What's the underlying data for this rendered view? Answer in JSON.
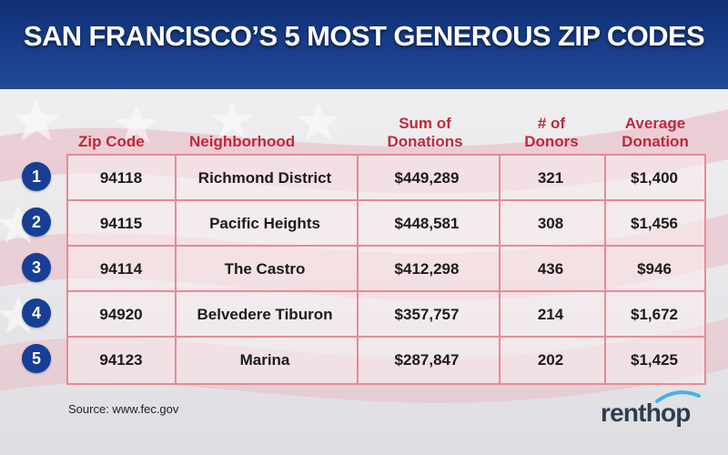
{
  "title": "SAN FRANCISCO’S 5 MOST GENEROUS ZIP CODES",
  "headers": {
    "zip": "Zip Code",
    "neighborhood": "Neighborhood",
    "sum_line1": "Sum of",
    "sum_line2": "Donations",
    "donors_line1": "# of",
    "donors_line2": "Donors",
    "avg_line1": "Average",
    "avg_line2": "Donation"
  },
  "rows": [
    {
      "rank": "1",
      "zip": "94118",
      "neighborhood": "Richmond District",
      "sum": "$449,289",
      "donors": "321",
      "avg": "$1,400"
    },
    {
      "rank": "2",
      "zip": "94115",
      "neighborhood": "Pacific Heights",
      "sum": "$448,581",
      "donors": "308",
      "avg": "$1,456"
    },
    {
      "rank": "3",
      "zip": "94114",
      "neighborhood": "The Castro",
      "sum": "$412,298",
      "donors": "436",
      "avg": "$946"
    },
    {
      "rank": "4",
      "zip": "94920",
      "neighborhood": "Belvedere Tiburon",
      "sum": "$357,757",
      "donors": "214",
      "avg": "$1,672"
    },
    {
      "rank": "5",
      "zip": "94123",
      "neighborhood": "Marina",
      "sum": "$287,847",
      "donors": "202",
      "avg": "$1,425"
    }
  ],
  "source": "Source: www.fec.gov",
  "logo_text": "renthop",
  "colors": {
    "header_blue": "#1a3f8d",
    "accent_red": "#c0283c",
    "badge_blue": "#163f95",
    "grid_pink": "#e88a96"
  }
}
